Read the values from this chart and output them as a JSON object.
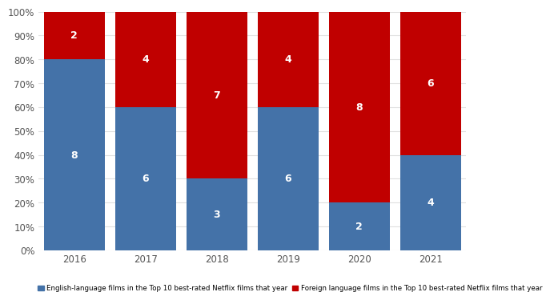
{
  "years": [
    "2016",
    "2017",
    "2018",
    "2019",
    "2020",
    "2021"
  ],
  "english_counts": [
    8,
    6,
    3,
    6,
    2,
    4
  ],
  "foreign_counts": [
    2,
    4,
    7,
    4,
    8,
    6
  ],
  "english_pct": [
    80,
    60,
    30,
    60,
    20,
    40
  ],
  "foreign_pct": [
    20,
    40,
    70,
    40,
    80,
    60
  ],
  "english_color": "#4472a8",
  "foreign_color": "#c00000",
  "background_color": "#ffffff",
  "grid_color": "#e0e0e0",
  "text_color": "#ffffff",
  "legend_english": "English-language films in the Top 10 best-rated Netflix films that year",
  "legend_foreign": "Foreign language films in the Top 10 best-rated Netflix films that year",
  "yticks": [
    0,
    10,
    20,
    30,
    40,
    50,
    60,
    70,
    80,
    90,
    100
  ],
  "ytick_labels": [
    "0%",
    "10%",
    "20%",
    "30%",
    "40%",
    "50%",
    "60%",
    "70%",
    "80%",
    "90%",
    "100%"
  ]
}
